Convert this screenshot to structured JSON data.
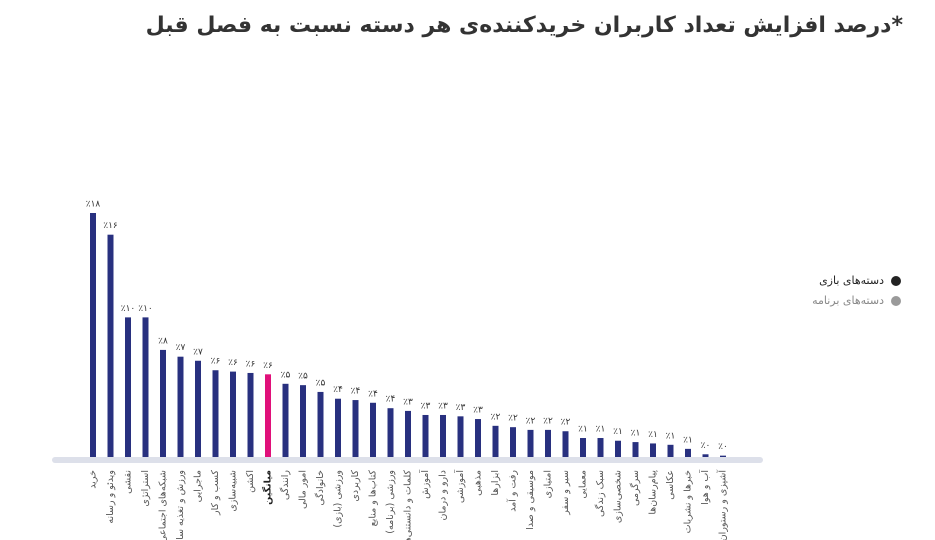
{
  "chart_data": {
    "type": "bar",
    "title": "درصد افزایش تعداد کاربران خریدکننده‌ی هر دسته نسبت به فصل قبل*",
    "categories": [
      "خرید",
      "ویدئو و رسانه",
      "نقشی",
      "استراتژی",
      "شبکه‌های اجتماعی",
      "ورزش و تغذیه سالم",
      "ماجرایی",
      "کسب و کار",
      "شبیه‌سازی",
      "اکشن",
      "میانگین",
      "رانندگی",
      "امور مالی",
      "خانوادگی",
      "ورزشی (بازی)",
      "کاربردی",
      "کتاب‌ها و منابع",
      "ورزشی (برنامه)",
      "کلمات و دانستنی‌ها",
      "آموزش",
      "دارو و درمان",
      "آموزشی",
      "مذهبی",
      "ابزارها",
      "رفت و آمد",
      "موسیقی و صدا",
      "امتیازی",
      "سیر و سفر",
      "معمایی",
      "سبک زندگی",
      "شخصی‌سازی",
      "سرگرمی",
      "پیام‌رسان‌ها",
      "عکاسی",
      "خبرها و نشریات",
      "آب و هوا",
      "آشپزی و رستوران"
    ],
    "values": [
      18.0,
      16.4,
      10.3,
      10.3,
      7.9,
      7.4,
      7.1,
      6.4,
      6.3,
      6.2,
      6.1,
      5.4,
      5.3,
      4.8,
      4.3,
      4.2,
      4.0,
      3.6,
      3.4,
      3.1,
      3.1,
      3.0,
      2.8,
      2.3,
      2.2,
      2.0,
      2.0,
      1.9,
      1.4,
      1.4,
      1.2,
      1.1,
      1.0,
      0.9,
      0.6,
      0.2,
      0.1
    ],
    "value_labels": [
      "٪۱۸",
      "٪۱۶",
      "٪۱۰",
      "٪۱۰",
      "٪۸",
      "٪۷",
      "٪۷",
      "٪۶",
      "٪۶",
      "٪۶",
      "٪۶",
      "٪۵",
      "٪۵",
      "٪۵",
      "٪۴",
      "٪۴",
      "٪۴",
      "٪۴",
      "٪۳",
      "٪۳",
      "٪۳",
      "٪۳",
      "٪۳",
      "٪۲",
      "٪۲",
      "٪۲",
      "٪۲",
      "٪۲",
      "٪۱",
      "٪۱",
      "٪۱",
      "٪۱",
      "٪۱",
      "٪۱",
      "٪۱",
      "٪۰",
      "٪۰"
    ],
    "colors": [
      "#28307f",
      "#28307f",
      "#28307f",
      "#28307f",
      "#28307f",
      "#28307f",
      "#28307f",
      "#28307f",
      "#28307f",
      "#28307f",
      "#e0107a",
      "#28307f",
      "#28307f",
      "#28307f",
      "#28307f",
      "#28307f",
      "#28307f",
      "#28307f",
      "#28307f",
      "#28307f",
      "#28307f",
      "#28307f",
      "#28307f",
      "#28307f",
      "#28307f",
      "#28307f",
      "#28307f",
      "#28307f",
      "#28307f",
      "#28307f",
      "#28307f",
      "#28307f",
      "#28307f",
      "#28307f",
      "#28307f",
      "#28307f",
      "#28307f"
    ],
    "legend": [
      {
        "name": "دسته‌های بازی",
        "color": "#222222"
      },
      {
        "name": "دسته‌های برنامه",
        "color": "#9a9a9a"
      }
    ]
  }
}
